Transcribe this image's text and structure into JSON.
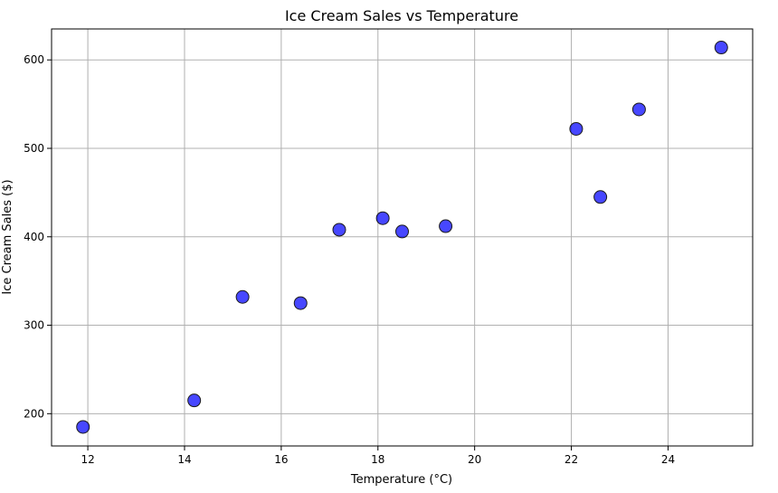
{
  "chart_data": {
    "type": "scatter",
    "title": "Ice Cream Sales vs Temperature",
    "xlabel": "Temperature (°C)",
    "ylabel": "Ice Cream Sales ($)",
    "xlim": [
      11.25,
      25.75
    ],
    "ylim": [
      163.5,
      635
    ],
    "xticks": [
      12,
      14,
      16,
      18,
      20,
      22,
      24
    ],
    "yticks": [
      200,
      300,
      400,
      500,
      600
    ],
    "grid": true,
    "point_color": "#0000ff",
    "point_edge_color": "#1a1a1a",
    "points": [
      {
        "x": 11.9,
        "y": 185
      },
      {
        "x": 14.2,
        "y": 215
      },
      {
        "x": 15.2,
        "y": 332
      },
      {
        "x": 16.4,
        "y": 325
      },
      {
        "x": 17.2,
        "y": 408
      },
      {
        "x": 18.1,
        "y": 421
      },
      {
        "x": 18.5,
        "y": 406
      },
      {
        "x": 19.4,
        "y": 412
      },
      {
        "x": 22.1,
        "y": 522
      },
      {
        "x": 22.6,
        "y": 445
      },
      {
        "x": 23.4,
        "y": 544
      },
      {
        "x": 25.1,
        "y": 614
      }
    ]
  }
}
